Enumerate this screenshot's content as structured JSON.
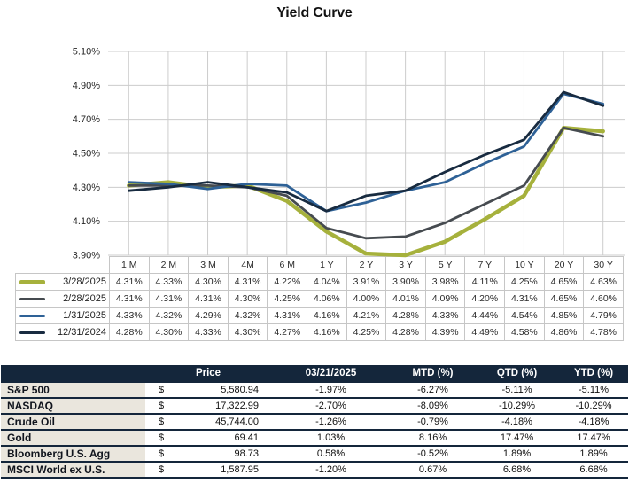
{
  "title": "Yield Curve",
  "chart_data": {
    "type": "line",
    "title": "Yield Curve",
    "categories": [
      "1 M",
      "2 M",
      "3 M",
      "4M",
      "6 M",
      "1 Y",
      "2 Y",
      "3 Y",
      "5 Y",
      "7 Y",
      "10 Y",
      "20 Y",
      "30 Y"
    ],
    "y_ticks": [
      "5.10%",
      "4.90%",
      "4.70%",
      "4.50%",
      "4.30%",
      "4.10%",
      "3.90%"
    ],
    "ylim": [
      3.9,
      5.1
    ],
    "grid": true,
    "legend_position": "left-of-data-table",
    "value_format": "0.00%",
    "series": [
      {
        "name": "3/28/2025",
        "color": "#a6b13c",
        "stroke_width": 4.5,
        "values": [
          4.31,
          4.33,
          4.3,
          4.31,
          4.22,
          4.04,
          3.91,
          3.9,
          3.98,
          4.11,
          4.25,
          4.65,
          4.63
        ]
      },
      {
        "name": "2/28/2025",
        "color": "#464b50",
        "stroke_width": 2.8,
        "values": [
          4.31,
          4.31,
          4.31,
          4.3,
          4.25,
          4.06,
          4.0,
          4.01,
          4.09,
          4.2,
          4.31,
          4.65,
          4.6
        ]
      },
      {
        "name": "1/31/2025",
        "color": "#2e6196",
        "stroke_width": 2.8,
        "values": [
          4.33,
          4.32,
          4.29,
          4.32,
          4.31,
          4.16,
          4.21,
          4.28,
          4.33,
          4.44,
          4.54,
          4.85,
          4.79
        ]
      },
      {
        "name": "12/31/2024",
        "color": "#182b40",
        "stroke_width": 2.8,
        "values": [
          4.28,
          4.3,
          4.33,
          4.3,
          4.27,
          4.16,
          4.25,
          4.28,
          4.39,
          4.49,
          4.58,
          4.86,
          4.78
        ]
      }
    ]
  },
  "market_table": {
    "col_headers": [
      "",
      "Price",
      "03/21/2025",
      "MTD (%)",
      "QTD (%)",
      "YTD (%)"
    ],
    "rows": [
      {
        "name": "S&P 500",
        "currency": "$",
        "price": "5,580.94",
        "change": "-1.97%",
        "mtd": "-6.27%",
        "qtd": "-5.11%",
        "ytd": "-5.11%"
      },
      {
        "name": "NASDAQ",
        "currency": "$",
        "price": "17,322.99",
        "change": "-2.70%",
        "mtd": "-8.09%",
        "qtd": "-10.29%",
        "ytd": "-10.29%"
      },
      {
        "name": "Crude Oil",
        "currency": "$",
        "price": "45,744.00",
        "change": "-1.26%",
        "mtd": "-0.79%",
        "qtd": "-4.18%",
        "ytd": "-4.18%"
      },
      {
        "name": "Gold",
        "currency": "$",
        "price": "69.41",
        "change": "1.03%",
        "mtd": "8.16%",
        "qtd": "17.47%",
        "ytd": "17.47%"
      },
      {
        "name": "Bloomberg U.S. Agg",
        "currency": "$",
        "price": "98.73",
        "change": "0.58%",
        "mtd": "-0.52%",
        "qtd": "1.89%",
        "ytd": "1.89%"
      },
      {
        "name": "MSCI World ex U.S.",
        "currency": "$",
        "price": "1,587.95",
        "change": "-1.20%",
        "mtd": "0.67%",
        "qtd": "6.68%",
        "ytd": "6.68%"
      }
    ]
  },
  "colors": {
    "navy_header": "#14263b",
    "beige_label": "#eae6dd",
    "grid_line": "#cccccc",
    "table_border": "#c6c6c6",
    "series_olive": "#a6b13c",
    "series_gray": "#464b50",
    "series_blue": "#2e6196",
    "series_navy": "#182b40"
  }
}
